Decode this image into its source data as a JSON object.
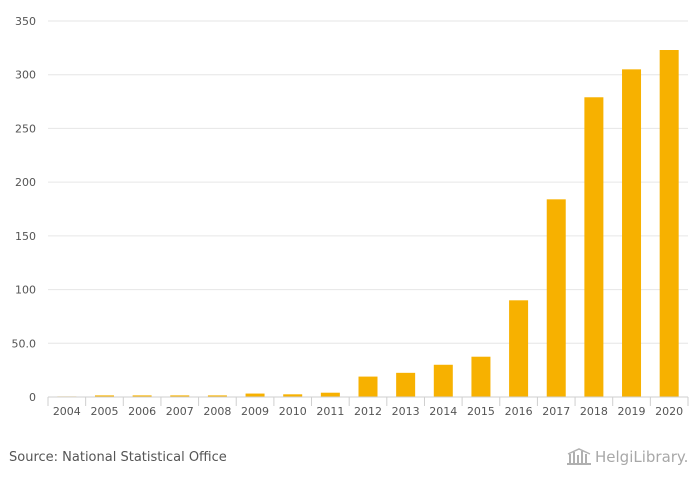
{
  "chart_data": {
    "type": "bar",
    "title": "",
    "xlabel": "",
    "ylabel": "",
    "categories": [
      "2004",
      "2005",
      "2006",
      "2007",
      "2008",
      "2009",
      "2010",
      "2011",
      "2012",
      "2013",
      "2014",
      "2015",
      "2016",
      "2017",
      "2018",
      "2019",
      "2020"
    ],
    "values": [
      0.3,
      1.5,
      1.5,
      1.5,
      1.5,
      3.2,
      2.5,
      4.0,
      19.0,
      22.5,
      30.0,
      37.5,
      90.0,
      184.0,
      279.0,
      305.0,
      323.0
    ],
    "ylim": [
      0,
      350
    ],
    "yticks": [
      0,
      50,
      100,
      150,
      200,
      250,
      300,
      350
    ],
    "ytick_labels": [
      "0",
      "50.0",
      "100",
      "150",
      "200",
      "250",
      "300",
      "350"
    ],
    "bar_color": "#f7b100",
    "grid": true
  },
  "footer": {
    "source": "Source: National Statistical Office",
    "logo_text": "HelgiLibrary."
  }
}
